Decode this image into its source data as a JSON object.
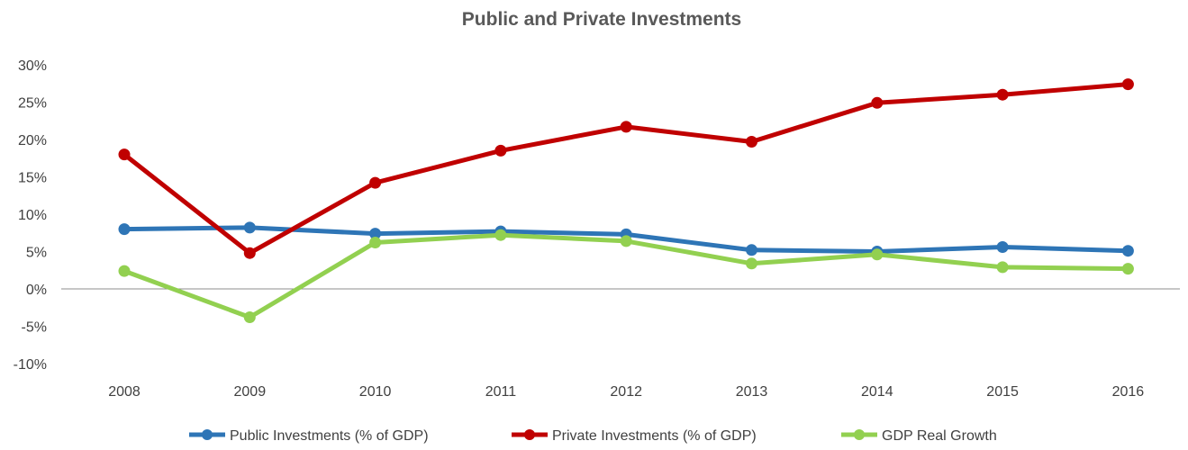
{
  "chart_data": {
    "type": "line",
    "title": "Public and Private Investments",
    "xlabel": "",
    "ylabel": "",
    "categories": [
      "2008",
      "2009",
      "2010",
      "2011",
      "2012",
      "2013",
      "2014",
      "2015",
      "2016"
    ],
    "ylim": [
      -10,
      30
    ],
    "y_ticks": [
      30,
      25,
      20,
      15,
      10,
      5,
      0,
      -5,
      -10
    ],
    "y_tick_labels": [
      "30%",
      "25%",
      "20%",
      "15%",
      "10%",
      "5%",
      "0%",
      "-5%",
      "-10%"
    ],
    "grid": false,
    "legend_position": "bottom",
    "series": [
      {
        "name": "Public Investments (% of GDP)",
        "color": "#2E75B6",
        "values": [
          8.0,
          8.2,
          7.4,
          7.7,
          7.3,
          5.2,
          5.0,
          5.6,
          5.1
        ]
      },
      {
        "name": "Private Investments (% of GDP)",
        "color": "#C00000",
        "values": [
          18.0,
          4.8,
          14.2,
          18.5,
          21.7,
          19.7,
          24.9,
          26.0,
          27.4
        ]
      },
      {
        "name": "GDP Real Growth",
        "color": "#92D050",
        "values": [
          2.4,
          -3.8,
          6.2,
          7.2,
          6.4,
          3.4,
          4.6,
          2.9,
          2.7
        ]
      }
    ]
  }
}
